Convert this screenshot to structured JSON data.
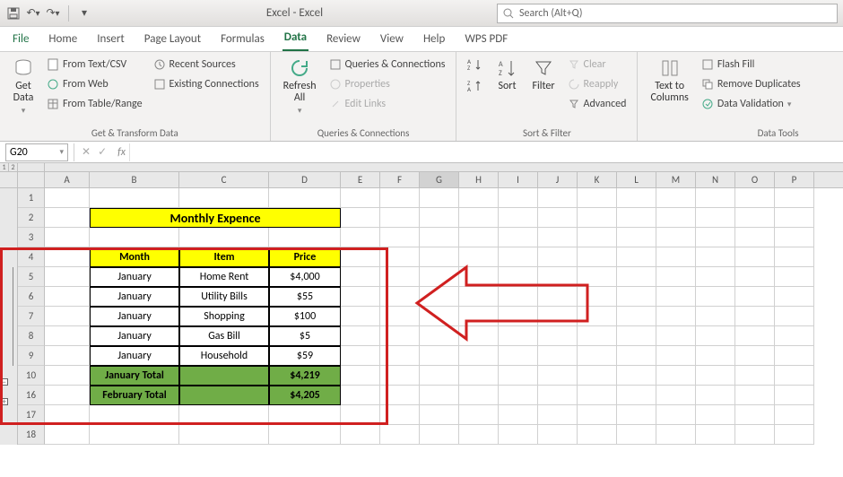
{
  "title": "Excel - Excel",
  "search_placeholder": "Search (Alt+Q)",
  "tabs": [
    "File",
    "Home",
    "Insert",
    "Page Layout",
    "Formulas",
    "Data",
    "Review",
    "View",
    "Help",
    "WPS PDF"
  ],
  "active_tab": "Data",
  "ribbon": {
    "transform": {
      "get_data": "Get\nData",
      "from_text": "From Text/CSV",
      "from_web": "From Web",
      "from_table": "From Table/Range",
      "recent": "Recent Sources",
      "existing": "Existing Connections",
      "label": "Get & Transform Data"
    },
    "queries": {
      "refresh": "Refresh\nAll",
      "conn": "Queries & Connections",
      "props": "Properties",
      "links": "Edit Links",
      "label": "Queries & Connections"
    },
    "sort": {
      "sort": "Sort",
      "filter": "Filter",
      "clear": "Clear",
      "reapply": "Reapply",
      "advanced": "Advanced",
      "label": "Sort & Filter"
    },
    "tools": {
      "t2c": "Text to\nColumns",
      "flash": "Flash Fill",
      "dup": "Remove Duplicates",
      "valid": "Data Validation",
      "label": "Data Tools"
    }
  },
  "namebox_value": "G20",
  "columns": [
    {
      "l": "A",
      "w": 50
    },
    {
      "l": "B",
      "w": 100
    },
    {
      "l": "C",
      "w": 100
    },
    {
      "l": "D",
      "w": 80
    },
    {
      "l": "E",
      "w": 44
    },
    {
      "l": "F",
      "w": 44
    },
    {
      "l": "G",
      "w": 44
    },
    {
      "l": "H",
      "w": 44
    },
    {
      "l": "I",
      "w": 44
    },
    {
      "l": "J",
      "w": 44
    },
    {
      "l": "K",
      "w": 44
    },
    {
      "l": "L",
      "w": 44
    },
    {
      "l": "M",
      "w": 44
    },
    {
      "l": "N",
      "w": 44
    },
    {
      "l": "O",
      "w": 44
    },
    {
      "l": "P",
      "w": 44
    }
  ],
  "outline_levels": [
    "1",
    "2"
  ],
  "row_list": [
    1,
    2,
    3,
    4,
    5,
    6,
    7,
    8,
    9,
    10,
    16,
    17,
    18
  ],
  "table": {
    "title": "Monthly Expence",
    "headers": [
      "Month",
      "Item",
      "Price"
    ],
    "rows": [
      [
        "January",
        "Home Rent",
        "$4,000"
      ],
      [
        "January",
        "Utility Bills",
        "$55"
      ],
      [
        "January",
        "Shopping",
        "$100"
      ],
      [
        "January",
        "Gas Bill",
        "$5"
      ],
      [
        "January",
        "Household",
        "$59"
      ]
    ],
    "totals": [
      [
        "January Total",
        "",
        "$4,219"
      ],
      [
        "February Total",
        "",
        "$4,205"
      ]
    ],
    "yellow": "#ffff00",
    "green": "#70ad47",
    "border": "#000000"
  }
}
